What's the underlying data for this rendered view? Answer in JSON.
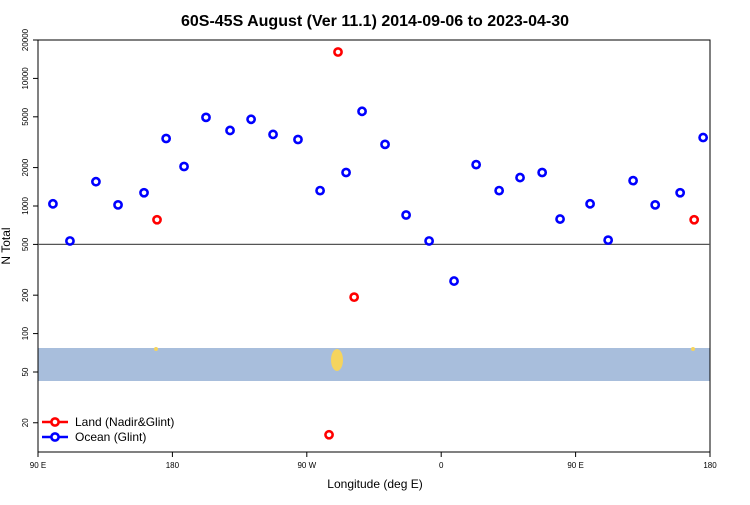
{
  "chart_data": {
    "type": "scatter",
    "title": "60S-45S August (Ver 11.1)   2014-09-06 to 2023-04-30",
    "x_label": "Longitude (deg E)",
    "y_label": "N Total",
    "log_y": true,
    "hline": 500,
    "legend": "bottom-left",
    "xlim": [
      90,
      540
    ],
    "ylim": [
      11.8,
      20000
    ],
    "xticks": [
      {
        "value": 90,
        "label": "90 E"
      },
      180,
      {
        "value": 270,
        "label": "90 W"
      },
      {
        "value": 360,
        "label": "0"
      },
      {
        "value": 450,
        "label": "90 E"
      },
      {
        "value": 540,
        "label": "180"
      }
    ],
    "yticks": [
      20,
      50,
      100,
      200,
      500,
      1000,
      2000,
      5000,
      10000,
      20000
    ],
    "series": [
      {
        "name": "Land (Nadir&Glint)",
        "color": "#ff0000",
        "x": [
          169.7,
          284.9,
          290.9,
          301.7,
          529.4
        ],
        "values": [
          780,
          16.1,
          16100,
          193,
          780
        ]
      },
      {
        "name": "Ocean (Glint)",
        "color": "#0000ff",
        "x": [
          100,
          111.4,
          128.8,
          143.6,
          161,
          175.8,
          187.8,
          202.5,
          218.6,
          232.7,
          247.4,
          264.1,
          278.9,
          296.3,
          307,
          322.4,
          336.5,
          351.9,
          368.6,
          383.4,
          398.8,
          412.8,
          427.6,
          439.6,
          459.7,
          471.8,
          488.5,
          503.3,
          520,
          535.4
        ],
        "values": [
          1040,
          532,
          1550,
          1020,
          1270,
          3380,
          2040,
          4950,
          3910,
          4780,
          3640,
          3320,
          1320,
          1830,
          5520,
          3040,
          850,
          532,
          258,
          2110,
          1320,
          1670,
          1830,
          790,
          1040,
          540,
          1580,
          1020,
          1270,
          3440
        ]
      }
    ]
  }
}
